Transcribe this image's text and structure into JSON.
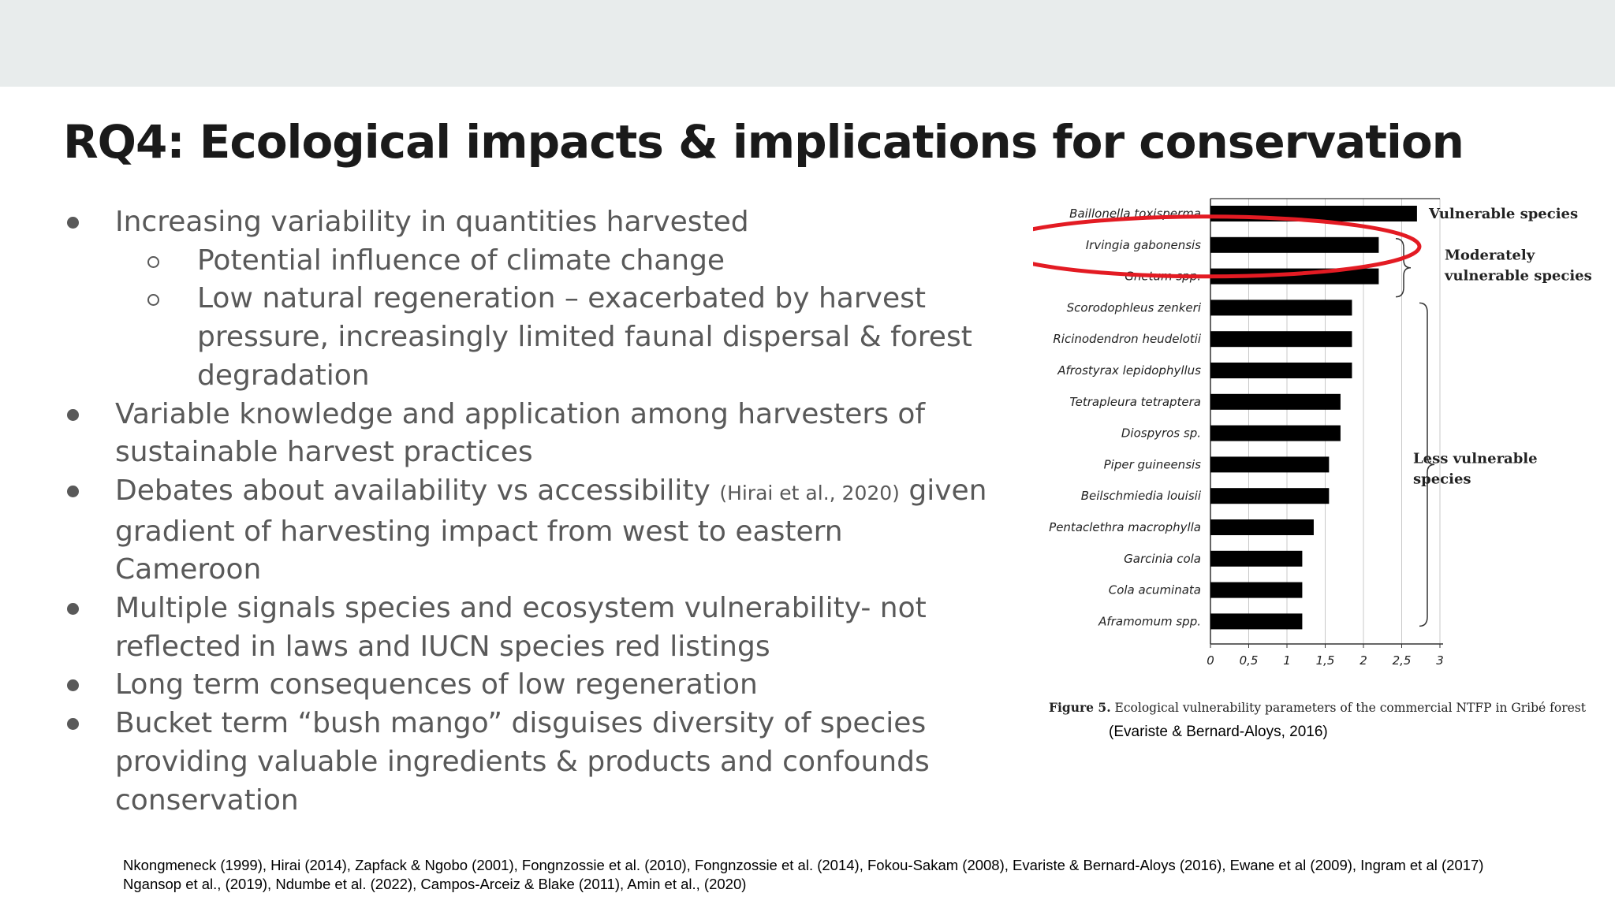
{
  "slide": {
    "title": "RQ4: Ecological impacts & implications for conservation",
    "bullets": [
      {
        "level": 1,
        "lines": [
          "Increasing variability in quantities harvested"
        ]
      },
      {
        "level": 2,
        "lines": [
          "Potential influence of climate change"
        ]
      },
      {
        "level": 2,
        "lines": [
          "Low natural regeneration – exacerbated by harvest",
          "pressure, increasingly limited faunal dispersal & forest",
          "degradation"
        ]
      },
      {
        "level": 1,
        "lines": [
          "Variable knowledge and application among harvesters of",
          "sustainable harvest practices"
        ]
      },
      {
        "level": 1,
        "lines": [
          "Debates about availability vs accessibility",
          "gradient of harvesting impact from west to eastern",
          "Cameroon"
        ],
        "inline_citation": "(Hirai et al., 2020)",
        "after_citation": "given"
      },
      {
        "level": 1,
        "lines": [
          "Multiple signals species and ecosystem vulnerability-  not",
          "reflected in laws and IUCN species red listings"
        ]
      },
      {
        "level": 1,
        "lines": [
          "Long term consequences of low regeneration"
        ]
      },
      {
        "level": 1,
        "lines": [
          "Bucket term “bush mango” disguises diversity of species",
          "providing valuable ingredients & products and confounds",
          "conservation"
        ]
      }
    ],
    "references": [
      "Nkongmeneck (1999), Hirai (2014), Zapfack & Ngobo (2001), Fongnzossie et al. (2010), Fongnzossie et al. (2014), Fokou-Sakam (2008), Evariste & Bernard-Aloys (2016), Ewane et al (2009), Ingram et al (2017)",
      "Ngansop et al., (2019), Ndumbe et al. (2022), Campos-Arceiz & Blake (2011), Amin et al., (2020)"
    ],
    "figure": {
      "caption_label": "Figure 5.",
      "caption_text": " Ecological vulnerability parameters of the commercial NTFP in Gribé forest",
      "source": "(Evariste & Bernard-Aloys, 2016)",
      "highlight_color": "#e31b23"
    }
  },
  "chart_data": {
    "type": "bar",
    "orientation": "horizontal",
    "categories": [
      "Baillonella toxisperma",
      "Irvingia gabonensis",
      "Gnetum spp.",
      "Scorodophleus zenkeri",
      "Ricinodendron heudelotii",
      "Afrostyrax lepidophyllus",
      "Tetrapleura tetraptera",
      "Diospyros sp.",
      "Piper guineensis",
      "Beilschmiedia louisii",
      "Pentaclethra macrophylla",
      "Garcinia cola",
      "Cola acuminata",
      "Aframomum spp."
    ],
    "values": [
      2.7,
      2.2,
      2.2,
      1.85,
      1.85,
      1.85,
      1.7,
      1.7,
      1.55,
      1.55,
      1.35,
      1.2,
      1.2,
      1.2
    ],
    "xlim": [
      0,
      3
    ],
    "x_ticks": [
      "0",
      "0,5",
      "1",
      "1,5",
      "2",
      "2,5",
      "3"
    ],
    "x_tick_values": [
      0,
      0.5,
      1,
      1.5,
      2,
      2.5,
      3
    ],
    "grid": true,
    "bar_color": "#000000",
    "annotations": [
      {
        "lines": [
          "Vulnerable species"
        ],
        "from": 0,
        "to": 0
      },
      {
        "lines": [
          "Moderately",
          "vulnerable species"
        ],
        "from": 1,
        "to": 2
      },
      {
        "lines": [
          "Less vulnerable",
          "species"
        ],
        "from": 3,
        "to": 13
      }
    ],
    "highlighted": "Irvingia gabonensis"
  }
}
